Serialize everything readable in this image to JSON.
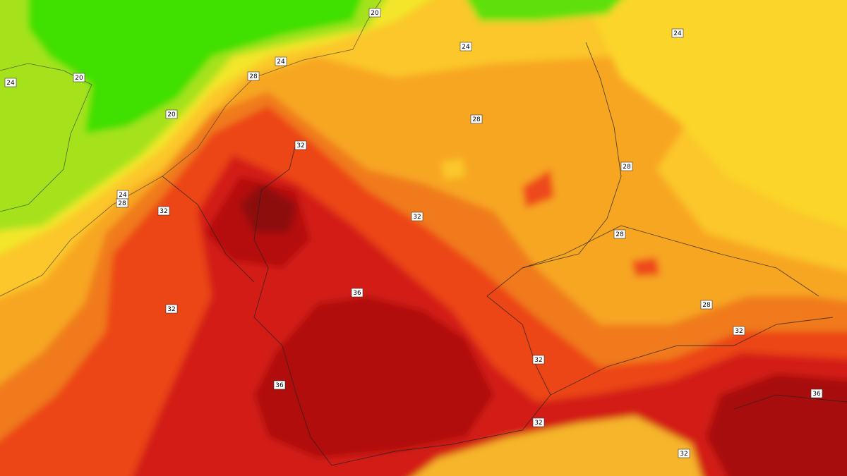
{
  "contour_labels": [
    "20",
    "24",
    "24",
    "24",
    "20",
    "24",
    "28",
    "20",
    "28",
    "32",
    "28",
    "24",
    "28",
    "32",
    "32",
    "28",
    "36",
    "28",
    "32",
    "32",
    "32",
    "36",
    "36",
    "32",
    "32"
  ]
}
